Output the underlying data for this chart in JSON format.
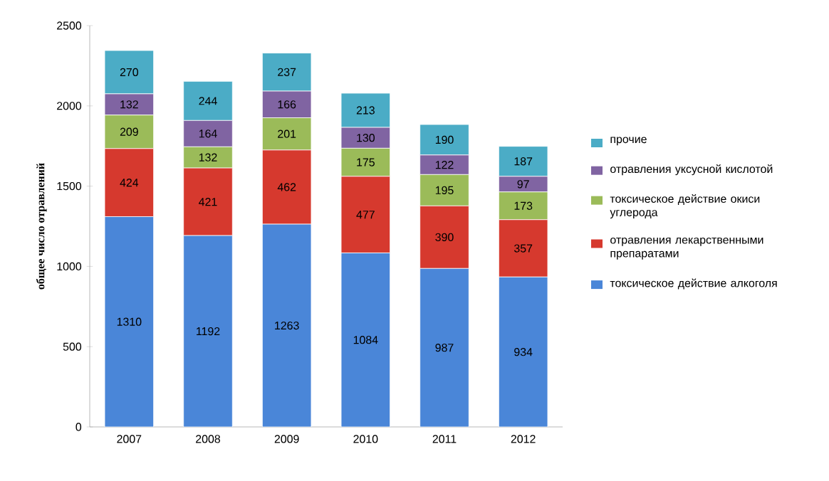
{
  "chart_data": {
    "type": "bar",
    "stacked": true,
    "ylabel": "общее число отравлений",
    "categories": [
      "2007",
      "2008",
      "2009",
      "2010",
      "2011",
      "2012"
    ],
    "series": [
      {
        "name": "токсическое действие алкоголя",
        "color": "#4a86d8",
        "values": [
          1310,
          1192,
          1263,
          1084,
          987,
          934
        ]
      },
      {
        "name": "отравления лекарственными препаратами",
        "color": "#d6392e",
        "values": [
          424,
          421,
          462,
          477,
          390,
          357
        ]
      },
      {
        "name": "токсическое действие окиси углерода",
        "color": "#9bbb59",
        "values": [
          209,
          132,
          201,
          175,
          195,
          173
        ]
      },
      {
        "name": "отравления уксусной кислотой",
        "color": "#8064a2",
        "values": [
          132,
          164,
          166,
          130,
          122,
          97
        ]
      },
      {
        "name": "прочие",
        "color": "#4bacc6",
        "values": [
          270,
          244,
          237,
          213,
          190,
          187
        ]
      }
    ],
    "ylim": [
      0,
      2500
    ],
    "yticks": [
      0,
      500,
      1000,
      1500,
      2000,
      2500
    ],
    "legend": "right",
    "data_labels": true
  }
}
